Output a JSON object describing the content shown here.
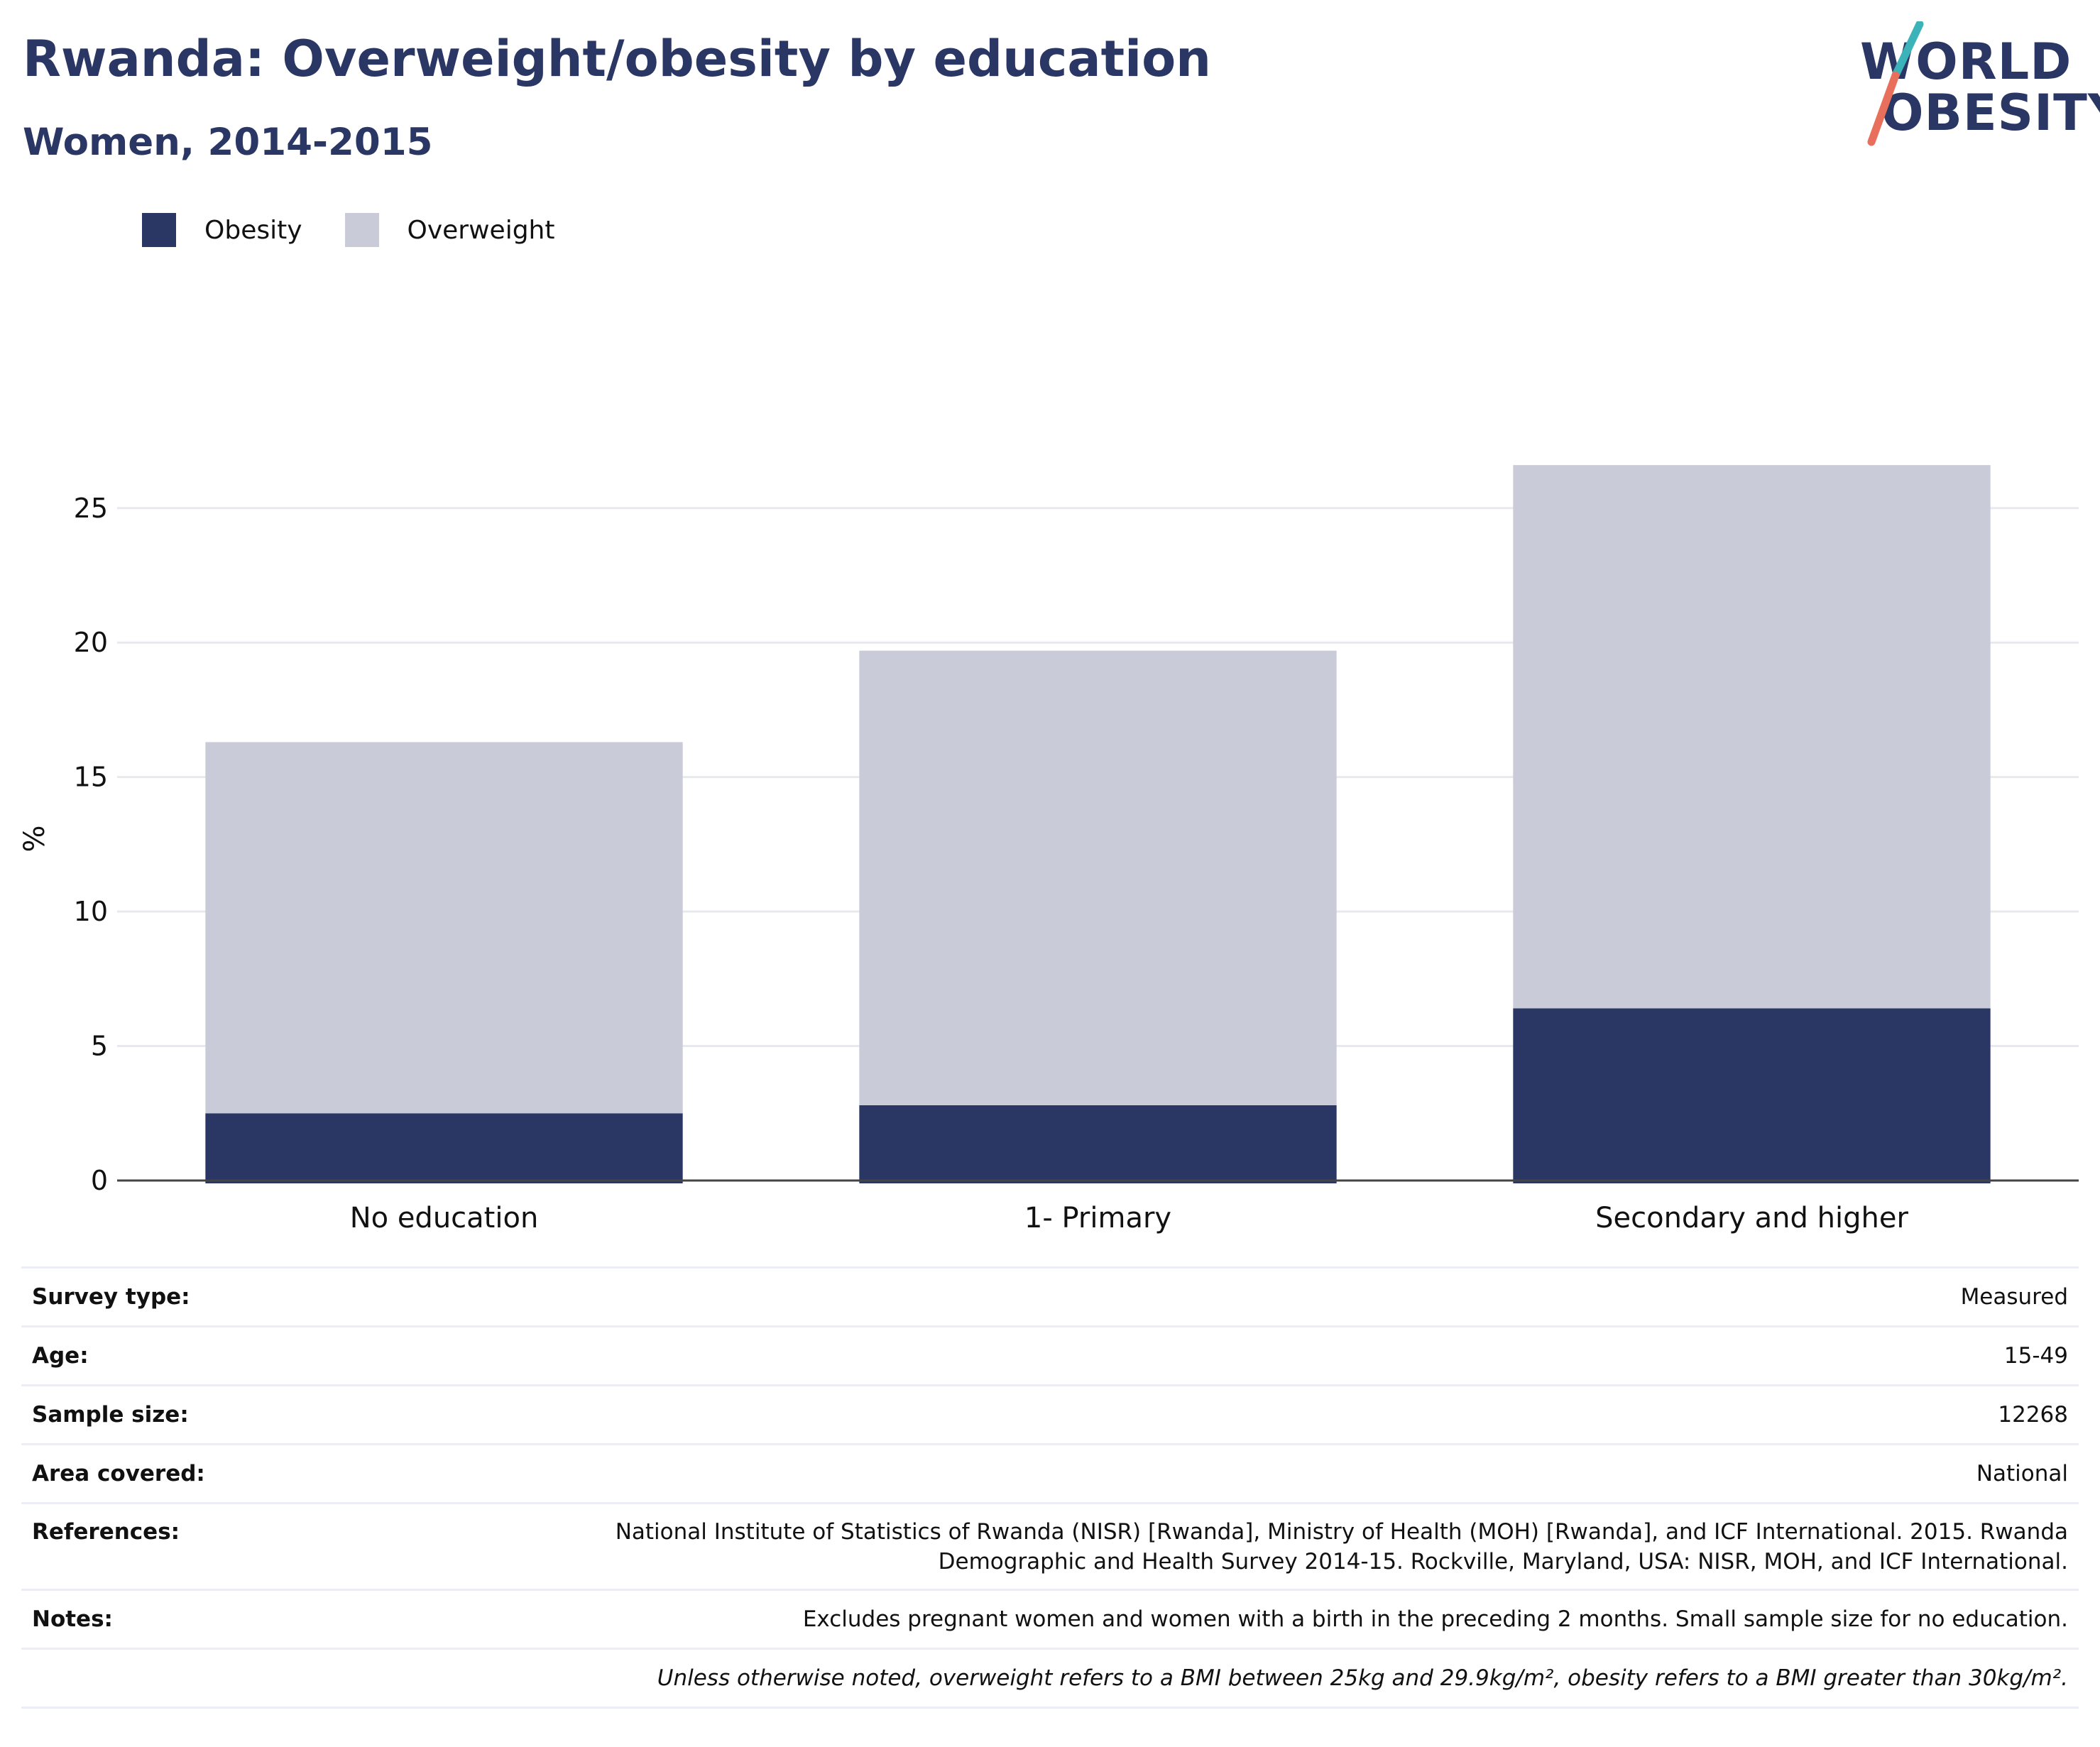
{
  "header": {
    "title": "Rwanda: Overweight/obesity by education",
    "subtitle": "Women, 2014-2015"
  },
  "logo": {
    "line1": "WORLD",
    "line2": "OBESITY"
  },
  "legend": [
    {
      "label": "Obesity",
      "color": "#2a3664"
    },
    {
      "label": "Overweight",
      "color": "#c9ccd8"
    }
  ],
  "chart_data": {
    "type": "bar",
    "stacked": true,
    "categories": [
      "No education",
      "1- Primary",
      "Secondary and higher"
    ],
    "series": [
      {
        "name": "Obesity",
        "color": "#2a3664",
        "values": [
          2.5,
          2.8,
          6.4
        ]
      },
      {
        "name": "Overweight",
        "color": "#c9ccd8",
        "values": [
          13.8,
          16.9,
          20.2
        ]
      }
    ],
    "ylabel": "%",
    "ylim": [
      0,
      27
    ],
    "yticks": [
      0,
      5,
      10,
      15,
      20,
      25
    ],
    "grid": true,
    "legend_position": "top-left"
  },
  "meta": {
    "rows": [
      {
        "label": "Survey type:",
        "value": "Measured"
      },
      {
        "label": "Age:",
        "value": "15-49"
      },
      {
        "label": "Sample size:",
        "value": "12268"
      },
      {
        "label": "Area covered:",
        "value": "National"
      },
      {
        "label": "References:",
        "value_lines": [
          "National Institute of Statistics of Rwanda (NISR) [Rwanda], Ministry of Health (MOH) [Rwanda], and ICF International. 2015. Rwanda",
          "Demographic and Health Survey 2014-15. Rockville, Maryland, USA: NISR, MOH, and ICF International."
        ]
      },
      {
        "label": "Notes:",
        "value": "Excludes pregnant women and women with a birth in the preceding 2 months. Small sample size for no education."
      }
    ],
    "footnote": "Unless otherwise noted, overweight refers to a BMI between 25kg and 29.9kg/m², obesity refers to a BMI greater than 30kg/m²."
  }
}
